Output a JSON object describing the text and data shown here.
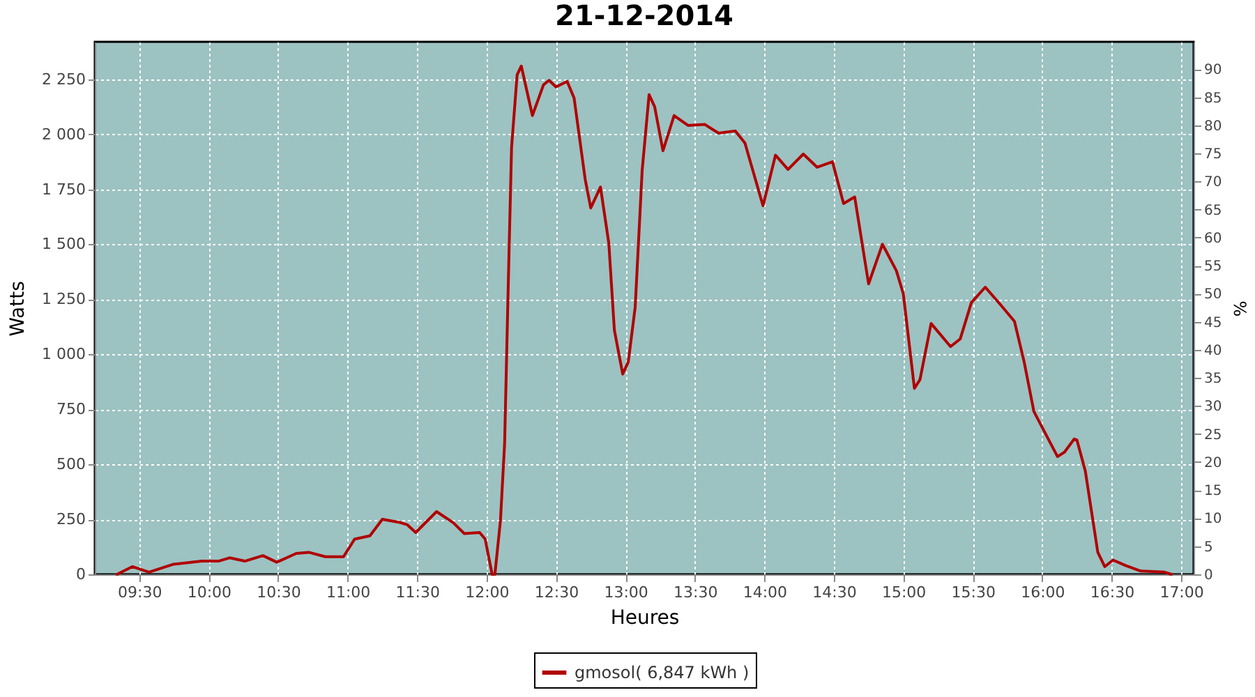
{
  "chart_data": {
    "type": "line",
    "title": "21-12-2014",
    "xlabel": "Heures",
    "ylabel": "Watts",
    "y2label": "%",
    "x": [
      9.34,
      9.45,
      9.57,
      9.74,
      9.95,
      10.07,
      10.15,
      10.26,
      10.39,
      10.49,
      10.63,
      10.72,
      10.84,
      10.97,
      11.05,
      11.16,
      11.25,
      11.38,
      11.43,
      11.49,
      11.64,
      11.76,
      11.84,
      11.95,
      11.99,
      12.04,
      12.06,
      12.1,
      12.13,
      12.16,
      12.18,
      12.22,
      12.25,
      12.33,
      12.41,
      12.45,
      12.5,
      12.58,
      12.63,
      12.71,
      12.75,
      12.82,
      12.88,
      12.92,
      12.98,
      13.02,
      13.07,
      13.12,
      13.17,
      13.21,
      13.27,
      13.35,
      13.45,
      13.57,
      13.67,
      13.79,
      13.86,
      13.99,
      14.08,
      14.17,
      14.28,
      14.38,
      14.49,
      14.57,
      14.65,
      14.75,
      14.85,
      14.95,
      15.0,
      15.08,
      15.12,
      15.2,
      15.34,
      15.41,
      15.49,
      15.59,
      15.7,
      15.8,
      15.87,
      15.94,
      16.06,
      16.11,
      16.16,
      16.23,
      16.25,
      16.31,
      16.4,
      16.45,
      16.51,
      16.6,
      16.71,
      16.88,
      16.93
    ],
    "series": [
      {
        "name": "gmosol( 6,847 kWh )",
        "color": "#b00000",
        "values": [
          0,
          35,
          10,
          45,
          60,
          60,
          75,
          60,
          85,
          55,
          95,
          100,
          80,
          80,
          160,
          175,
          250,
          235,
          225,
          190,
          285,
          235,
          185,
          190,
          160,
          0,
          0,
          245,
          595,
          1420,
          1940,
          2270,
          2310,
          2085,
          2225,
          2245,
          2215,
          2240,
          2165,
          1795,
          1665,
          1760,
          1505,
          1110,
          910,
          965,
          1215,
          1835,
          2180,
          2125,
          1925,
          2085,
          2040,
          2045,
          2005,
          2015,
          1960,
          1675,
          1905,
          1840,
          1910,
          1850,
          1875,
          1685,
          1715,
          1320,
          1500,
          1380,
          1275,
          845,
          885,
          1140,
          1035,
          1070,
          1235,
          1305,
          1225,
          1150,
          965,
          740,
          595,
          535,
          555,
          615,
          610,
          470,
          100,
          35,
          65,
          40,
          15,
          10,
          0
        ]
      }
    ],
    "xlim": [
      9.18,
      17.09
    ],
    "xticks": [
      {
        "value": 9.5,
        "label": "09:30"
      },
      {
        "value": 10,
        "label": "10:00"
      },
      {
        "value": 10.5,
        "label": "10:30"
      },
      {
        "value": 11,
        "label": "11:00"
      },
      {
        "value": 11.5,
        "label": "11:30"
      },
      {
        "value": 12,
        "label": "12:00"
      },
      {
        "value": 12.5,
        "label": "12:30"
      },
      {
        "value": 13,
        "label": "13:00"
      },
      {
        "value": 13.5,
        "label": "13:30"
      },
      {
        "value": 14,
        "label": "14:00"
      },
      {
        "value": 14.5,
        "label": "14:30"
      },
      {
        "value": 15,
        "label": "15:00"
      },
      {
        "value": 15.5,
        "label": "15:30"
      },
      {
        "value": 16,
        "label": "16:00"
      },
      {
        "value": 16.5,
        "label": "16:30"
      },
      {
        "value": 17,
        "label": "17:00"
      }
    ],
    "ylim": [
      0,
      2420
    ],
    "yticks": [
      0,
      250,
      500,
      750,
      {
        "value": 1000,
        "label": "1 000"
      },
      {
        "value": 1250,
        "label": "1 250"
      },
      {
        "value": 1500,
        "label": "1 500"
      },
      {
        "value": 1750,
        "label": "1 750"
      },
      {
        "value": 2000,
        "label": "2 000"
      },
      {
        "value": 2250,
        "label": "2 250"
      }
    ],
    "y2lim": [
      0,
      94.9
    ],
    "y2ticks": [
      0,
      5,
      10,
      15,
      20,
      25,
      30,
      35,
      40,
      45,
      50,
      55,
      60,
      65,
      70,
      75,
      80,
      85,
      90
    ],
    "grid": true,
    "legend": "bottom",
    "line_style": "solid"
  }
}
